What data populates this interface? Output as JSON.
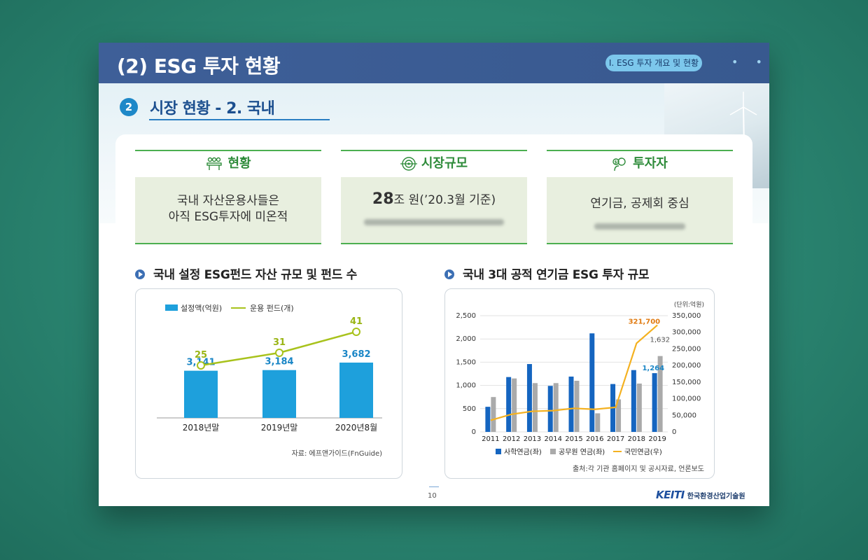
{
  "header": {
    "title": "(2) ESG 투자 현황",
    "breadcrumb": "I. ESG 투자 개요 및 현황",
    "dots": "• •"
  },
  "section": {
    "number": "2",
    "title": "시장 현황 - 2. 국내"
  },
  "cards": [
    {
      "heading": "현황",
      "icon": "meeting-icon",
      "line1": "국내 자산운용사들은",
      "line2": "아직 ESG투자에 미온적"
    },
    {
      "heading": "시장규모",
      "icon": "target-icon",
      "big": "28",
      "rest": "조 원(’20.3월 기준)"
    },
    {
      "heading": "투자자",
      "icon": "investor-icon",
      "line1": "연기금, 공제회 중심"
    }
  ],
  "chart1": {
    "title": "국내 설정 ESG펀드 자산 규모 및 펀드 수",
    "source": "자료: 에프앤가이드(FnGuide)",
    "chart_data": {
      "type": "bar",
      "categories": [
        "2018년말",
        "2019년말",
        "2020년8월"
      ],
      "series": [
        {
          "name": "설정액(억원)",
          "type": "bar",
          "values": [
            3141,
            3184,
            3682
          ],
          "labels": [
            "3,141",
            "3,184",
            "3,682"
          ],
          "color": "#1ea0dc"
        },
        {
          "name": "운용 펀드(개)",
          "type": "line",
          "values": [
            25,
            31,
            41
          ],
          "labels": [
            "25",
            "31",
            "41"
          ],
          "color": "#a8c21c"
        }
      ]
    }
  },
  "chart2": {
    "title": "국내 3대 공적 연기금 ESG 투자 규모",
    "unit": "(단위:억원)",
    "source": "출처:각 기관 홈페이지 및 공시자료, 언론보도",
    "chart_data": {
      "type": "bar",
      "categories": [
        "2011",
        "2012",
        "2013",
        "2014",
        "2015",
        "2016",
        "2017",
        "2018",
        "2019"
      ],
      "ylim_left": [
        0,
        2500
      ],
      "ylim_right": [
        0,
        350000
      ],
      "left_ticks": [
        "0",
        "500",
        "1,000",
        "1,500",
        "2,000",
        "2,500"
      ],
      "right_ticks": [
        "0",
        "50,000",
        "100,000",
        "150,000",
        "200,000",
        "250,000",
        "300,000",
        "350,000"
      ],
      "series": [
        {
          "name": "사학연금(좌)",
          "type": "bar",
          "axis": "left",
          "color": "#1565c0",
          "values": [
            540,
            1180,
            1460,
            990,
            1190,
            2120,
            1030,
            1330,
            1264
          ]
        },
        {
          "name": "공무원 연금(좌)",
          "type": "bar",
          "axis": "left",
          "color": "#aaaaaa",
          "values": [
            750,
            1150,
            1050,
            1050,
            1100,
            400,
            700,
            1040,
            1632
          ]
        },
        {
          "name": "국민연금(우)",
          "type": "line",
          "axis": "right",
          "color": "#f4b120",
          "values": [
            35000,
            53000,
            62000,
            64000,
            71000,
            68000,
            74000,
            267000,
            321700
          ]
        }
      ],
      "annotations": [
        {
          "series": "사학연금(좌)",
          "category": "2019",
          "label": "1,264"
        },
        {
          "series": "공무원 연금(좌)",
          "category": "2019",
          "label": "1,632"
        },
        {
          "series": "국민연금(우)",
          "category": "2019",
          "label": "321,700"
        }
      ]
    }
  },
  "footer": {
    "page": "10",
    "logo": "KEITI",
    "org": "한국환경산업기술원"
  }
}
